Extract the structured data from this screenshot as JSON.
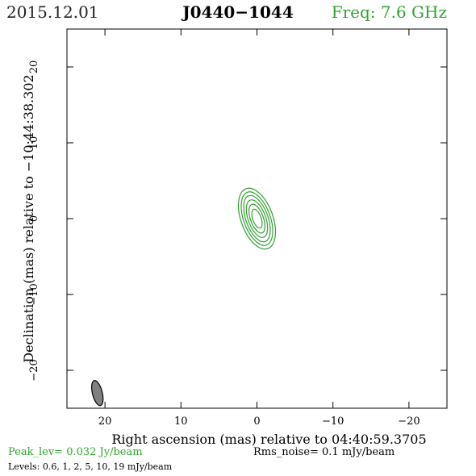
{
  "header": {
    "date": "2015.12.01",
    "source": "J0440−1044",
    "frequency": "Freq: 7.6 GHz"
  },
  "footer": {
    "peak": "Peak_lev=  0.032 Jy/beam",
    "noise": "Rms_noise=  0.1 mJy/beam",
    "levels": "Levels: 0.6,   1,   2,   5,  10,  19 mJy/beam"
  },
  "colors": {
    "contour": "#33a033",
    "beam_fill": "#808080",
    "text_green": "#2ea42e"
  },
  "chart_data": {
    "type": "contour",
    "xlabel": "Right ascension (mas) relative to 04:40:59.3705",
    "ylabel": "Declination (mas) relative to −10:44:38.302",
    "xlim": [
      25,
      -25
    ],
    "ylim": [
      -25,
      25
    ],
    "xticks": [
      20,
      10,
      0,
      -10,
      -20
    ],
    "yticks": [
      20,
      10,
      0,
      -10,
      -20
    ],
    "xticklabels": [
      "20",
      "10",
      "0",
      "−10",
      "−20"
    ],
    "yticklabels": [
      "20",
      "10",
      "0",
      "−10",
      "−20"
    ],
    "peak_jy_per_beam": 0.032,
    "rms_noise_mjy_per_beam": 0.1,
    "contour_levels_mjy_per_beam": [
      0.6,
      1,
      2,
      5,
      10,
      19
    ],
    "component": {
      "x": 0,
      "y": 0,
      "position_angle_deg": 20
    },
    "contour_semi_axes_mas": [
      [
        2.1,
        4.2
      ],
      [
        1.75,
        3.7
      ],
      [
        1.45,
        3.2
      ],
      [
        1.15,
        2.6
      ],
      [
        0.85,
        2.0
      ],
      [
        0.55,
        1.3
      ]
    ],
    "beam": {
      "x": 21,
      "y": -23,
      "major_mas": 3.4,
      "minor_mas": 1.3,
      "position_angle_deg": 14
    }
  }
}
